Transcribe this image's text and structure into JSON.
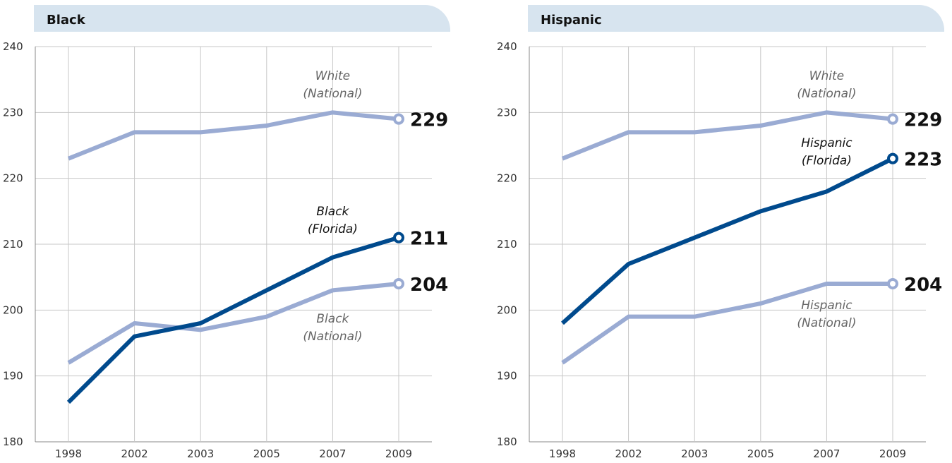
{
  "colors": {
    "header_band": "#d7e4ef",
    "grid": "#c7c7c7",
    "axis": "#888888",
    "light_series": "#9aabd3",
    "dark_series": "#004a8d"
  },
  "chart_data": [
    {
      "type": "line",
      "title": "Black",
      "categories": [
        "1998",
        "2002",
        "2003",
        "2005",
        "2007",
        "2009"
      ],
      "ylim": [
        180,
        240
      ],
      "yticks": [
        180,
        190,
        200,
        210,
        220,
        230,
        240
      ],
      "grid": true,
      "series": [
        {
          "label_lines": [
            "White",
            "(National)"
          ],
          "style": "light",
          "values": [
            223,
            227,
            227,
            228,
            230,
            229
          ],
          "end_label": "229"
        },
        {
          "label_lines": [
            "Black",
            "(National)"
          ],
          "style": "light",
          "values": [
            192,
            198,
            197,
            199,
            203,
            204
          ],
          "end_label": "204"
        },
        {
          "label_lines": [
            "Black",
            "(Florida)"
          ],
          "style": "dark",
          "values": [
            186,
            196,
            198,
            203,
            208,
            211
          ],
          "end_label": "211"
        }
      ]
    },
    {
      "type": "line",
      "title": "Hispanic",
      "categories": [
        "1998",
        "2002",
        "2003",
        "2005",
        "2007",
        "2009"
      ],
      "ylim": [
        180,
        240
      ],
      "yticks": [
        180,
        190,
        200,
        210,
        220,
        230,
        240
      ],
      "grid": true,
      "series": [
        {
          "label_lines": [
            "White",
            "(National)"
          ],
          "style": "light",
          "values": [
            223,
            227,
            227,
            228,
            230,
            229
          ],
          "end_label": "229"
        },
        {
          "label_lines": [
            "Hispanic",
            "(National)"
          ],
          "style": "light",
          "values": [
            192,
            199,
            199,
            201,
            204,
            204
          ],
          "end_label": "204"
        },
        {
          "label_lines": [
            "Hispanic",
            "(Florida)"
          ],
          "style": "dark",
          "values": [
            198,
            207,
            211,
            215,
            218,
            223
          ],
          "end_label": "223"
        }
      ]
    }
  ]
}
